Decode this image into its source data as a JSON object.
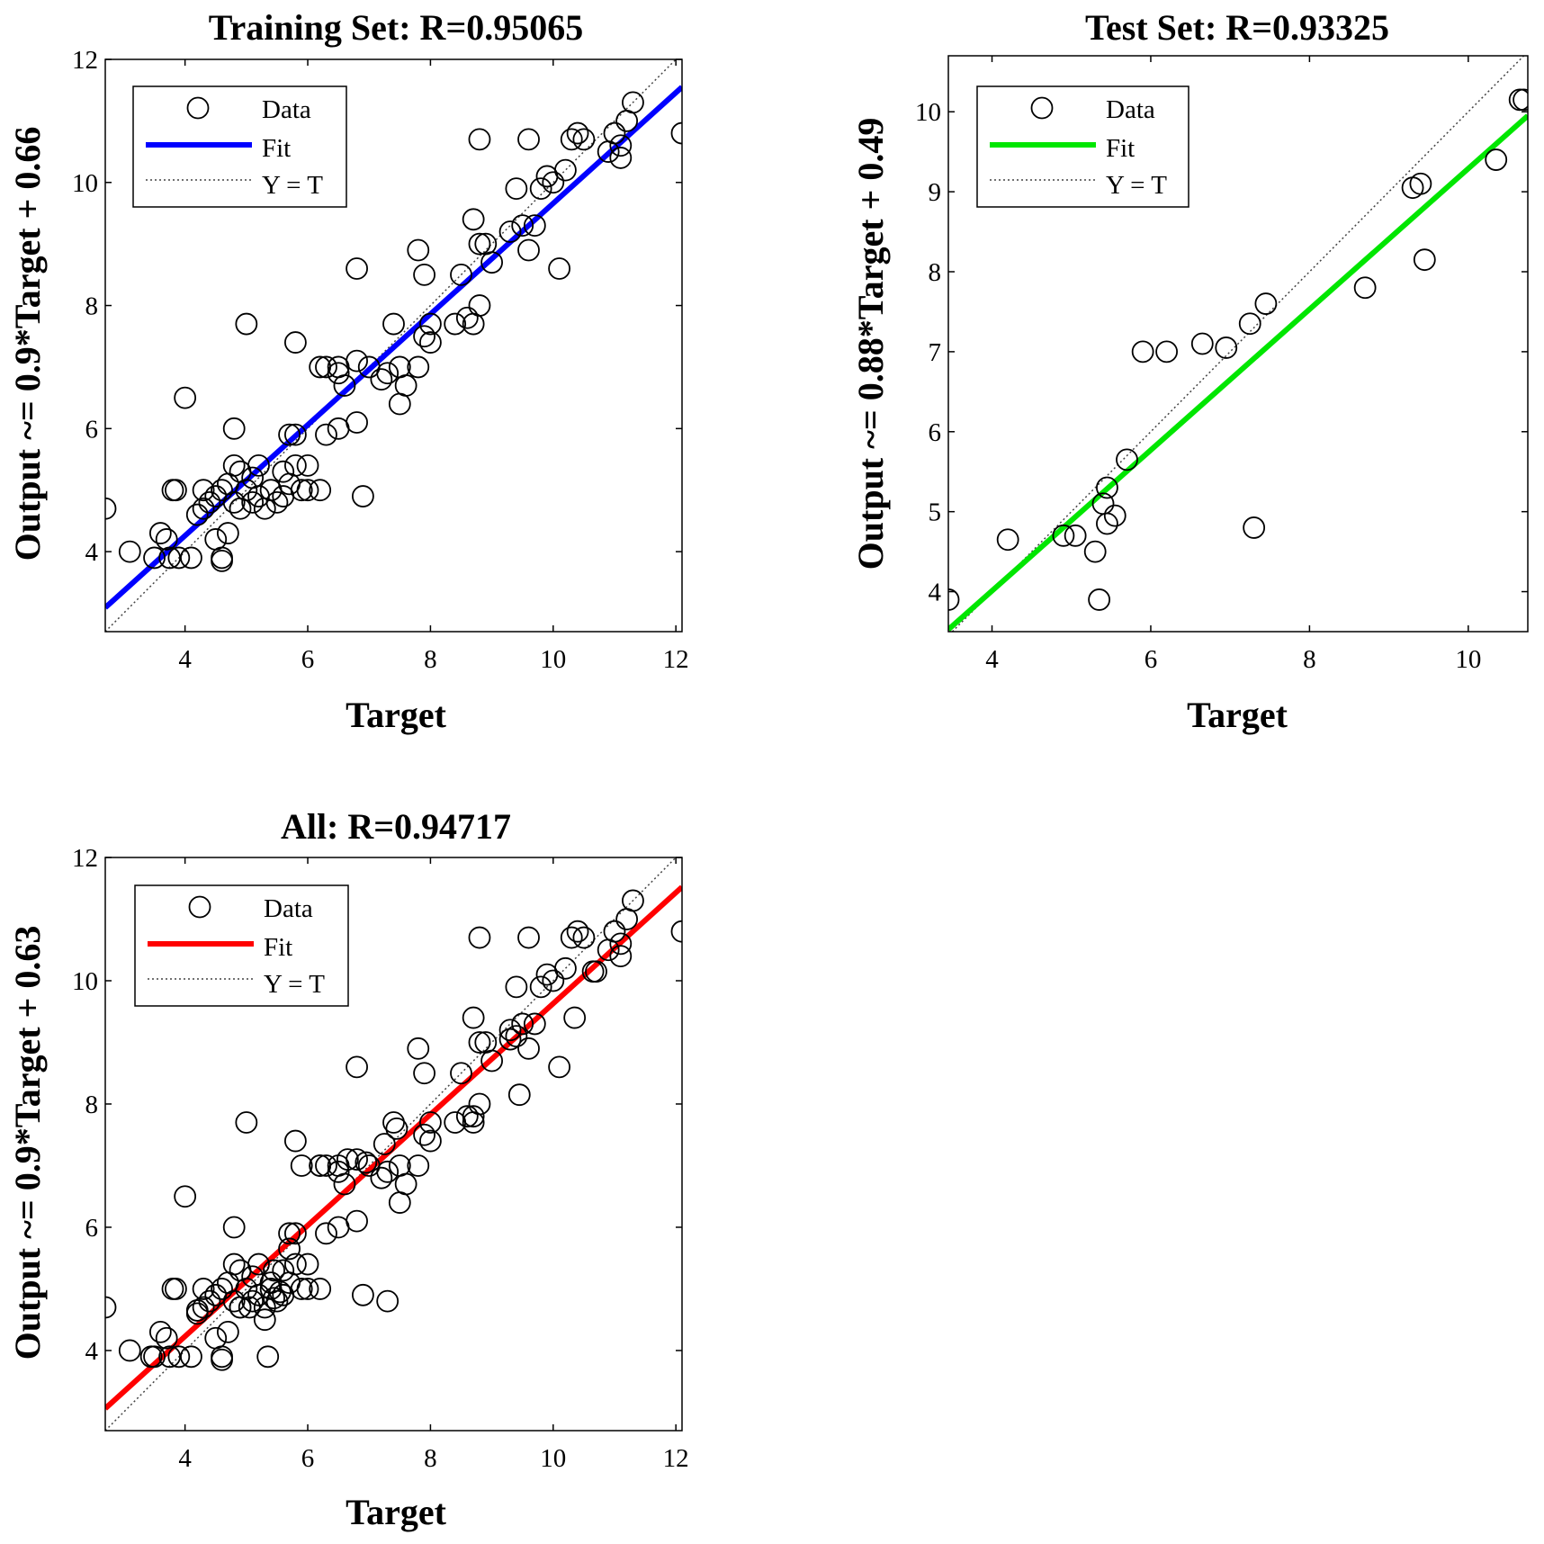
{
  "chart_data": [
    {
      "type": "scatter",
      "title": "Training Set: R=0.95065",
      "xlabel": "Target",
      "ylabel": "Output ~= 0.9*Target + 0.66",
      "xlim": [
        2.7,
        12.1
      ],
      "ylim": [
        2.7,
        12.0
      ],
      "xticks": [
        "4",
        "6",
        "8",
        "10",
        "12"
      ],
      "yticks": [
        "4",
        "6",
        "8",
        "10",
        "12"
      ],
      "grid": false,
      "legend_position": "top-left",
      "legend": [
        "Data",
        "Fit",
        "Y = T"
      ],
      "fit": {
        "slope": 0.9,
        "intercept": 0.66,
        "color": "#0000ff"
      },
      "identity_line": true,
      "points": [
        [
          2.7,
          4.7
        ],
        [
          3.1,
          4.0
        ],
        [
          3.5,
          3.9
        ],
        [
          3.6,
          4.3
        ],
        [
          3.7,
          4.2
        ],
        [
          3.8,
          5.0
        ],
        [
          3.85,
          5.0
        ],
        [
          3.9,
          3.9
        ],
        [
          3.75,
          3.9
        ],
        [
          4.0,
          6.5
        ],
        [
          4.1,
          3.9
        ],
        [
          4.2,
          4.6
        ],
        [
          4.3,
          4.7
        ],
        [
          4.3,
          5.0
        ],
        [
          4.4,
          4.8
        ],
        [
          4.5,
          4.9
        ],
        [
          4.5,
          4.2
        ],
        [
          4.6,
          3.9
        ],
        [
          4.6,
          3.85
        ],
        [
          4.6,
          5.0
        ],
        [
          4.7,
          4.3
        ],
        [
          4.7,
          5.1
        ],
        [
          4.8,
          6.0
        ],
        [
          4.8,
          5.4
        ],
        [
          4.8,
          4.8
        ],
        [
          4.9,
          4.7
        ],
        [
          4.9,
          5.3
        ],
        [
          5.0,
          7.7
        ],
        [
          5.0,
          5.0
        ],
        [
          5.1,
          5.2
        ],
        [
          5.1,
          4.8
        ],
        [
          5.2,
          5.4
        ],
        [
          5.2,
          4.9
        ],
        [
          5.3,
          4.7
        ],
        [
          5.4,
          5.0
        ],
        [
          5.5,
          4.8
        ],
        [
          5.6,
          4.9
        ],
        [
          5.6,
          5.3
        ],
        [
          5.7,
          5.9
        ],
        [
          5.7,
          5.1
        ],
        [
          5.8,
          7.4
        ],
        [
          5.8,
          5.4
        ],
        [
          5.8,
          5.9
        ],
        [
          5.9,
          5.0
        ],
        [
          6.0,
          5.4
        ],
        [
          6.0,
          5.0
        ],
        [
          6.2,
          5.0
        ],
        [
          6.2,
          7.0
        ],
        [
          6.3,
          7.0
        ],
        [
          6.3,
          5.9
        ],
        [
          6.5,
          7.0
        ],
        [
          6.5,
          6.9
        ],
        [
          6.5,
          6.0
        ],
        [
          6.6,
          6.7
        ],
        [
          6.8,
          8.6
        ],
        [
          6.8,
          7.1
        ],
        [
          6.8,
          6.1
        ],
        [
          6.9,
          4.9
        ],
        [
          7.0,
          7.0
        ],
        [
          7.2,
          6.8
        ],
        [
          7.3,
          6.9
        ],
        [
          7.4,
          7.7
        ],
        [
          7.5,
          6.4
        ],
        [
          7.5,
          7.0
        ],
        [
          7.6,
          6.7
        ],
        [
          7.8,
          8.9
        ],
        [
          7.8,
          7.0
        ],
        [
          7.9,
          8.5
        ],
        [
          7.9,
          7.5
        ],
        [
          8.0,
          7.7
        ],
        [
          8.0,
          7.4
        ],
        [
          8.4,
          7.7
        ],
        [
          8.5,
          8.5
        ],
        [
          8.6,
          7.8
        ],
        [
          8.7,
          9.4
        ],
        [
          8.7,
          7.7
        ],
        [
          8.8,
          8.0
        ],
        [
          8.8,
          10.7
        ],
        [
          8.8,
          9.0
        ],
        [
          8.9,
          9.0
        ],
        [
          9.0,
          8.7
        ],
        [
          9.3,
          9.2
        ],
        [
          9.4,
          9.9
        ],
        [
          9.5,
          9.3
        ],
        [
          9.6,
          10.7
        ],
        [
          9.6,
          8.9
        ],
        [
          9.7,
          9.3
        ],
        [
          9.8,
          9.9
        ],
        [
          9.9,
          10.1
        ],
        [
          10.0,
          10.0
        ],
        [
          10.1,
          8.6
        ],
        [
          10.2,
          10.2
        ],
        [
          10.3,
          10.7
        ],
        [
          10.4,
          10.8
        ],
        [
          10.5,
          10.7
        ],
        [
          10.9,
          10.5
        ],
        [
          11.0,
          10.8
        ],
        [
          11.1,
          10.4
        ],
        [
          11.1,
          10.6
        ],
        [
          11.2,
          11.0
        ],
        [
          11.3,
          11.3
        ],
        [
          12.1,
          10.8
        ]
      ]
    },
    {
      "type": "scatter",
      "title": "Test Set: R=0.93325",
      "xlabel": "Target",
      "ylabel": "Output ~= 0.88*Target + 0.49",
      "xlim": [
        3.45,
        10.75
      ],
      "ylim": [
        3.5,
        10.7
      ],
      "xticks": [
        "4",
        "6",
        "8",
        "10"
      ],
      "yticks": [
        "4",
        "5",
        "6",
        "7",
        "8",
        "9",
        "10"
      ],
      "grid": false,
      "legend_position": "top-left",
      "legend": [
        "Data",
        "Fit",
        "Y = T"
      ],
      "fit": {
        "slope": 0.88,
        "intercept": 0.49,
        "color": "#00e600"
      },
      "identity_line": true,
      "points": [
        [
          3.45,
          3.9
        ],
        [
          4.2,
          4.65
        ],
        [
          4.9,
          4.7
        ],
        [
          5.05,
          4.7
        ],
        [
          5.3,
          4.5
        ],
        [
          5.35,
          3.9
        ],
        [
          5.4,
          5.1
        ],
        [
          5.45,
          5.3
        ],
        [
          5.45,
          4.85
        ],
        [
          5.55,
          4.95
        ],
        [
          5.7,
          5.65
        ],
        [
          5.9,
          7.0
        ],
        [
          6.2,
          7.0
        ],
        [
          6.65,
          7.1
        ],
        [
          6.95,
          7.05
        ],
        [
          7.25,
          7.35
        ],
        [
          7.3,
          4.8
        ],
        [
          7.45,
          7.6
        ],
        [
          8.7,
          7.8
        ],
        [
          9.3,
          9.05
        ],
        [
          9.4,
          9.1
        ],
        [
          9.45,
          8.15
        ],
        [
          10.35,
          9.4
        ],
        [
          10.65,
          10.15
        ],
        [
          10.7,
          10.15
        ]
      ]
    },
    {
      "type": "scatter",
      "title": "All: R=0.94717",
      "xlabel": "Target",
      "ylabel": "Output ~= 0.9*Target + 0.63",
      "xlim": [
        2.7,
        12.1
      ],
      "ylim": [
        2.7,
        12.0
      ],
      "xticks": [
        "4",
        "6",
        "8",
        "10",
        "12"
      ],
      "yticks": [
        "4",
        "6",
        "8",
        "10",
        "12"
      ],
      "grid": false,
      "legend_position": "top-left",
      "legend": [
        "Data",
        "Fit",
        "Y = T"
      ],
      "fit": {
        "slope": 0.9,
        "intercept": 0.63,
        "color": "#ff0000"
      },
      "identity_line": true,
      "points": [
        [
          2.7,
          4.7
        ],
        [
          3.1,
          4.0
        ],
        [
          3.5,
          3.9
        ],
        [
          3.6,
          4.3
        ],
        [
          3.7,
          4.2
        ],
        [
          3.8,
          5.0
        ],
        [
          3.85,
          5.0
        ],
        [
          3.9,
          3.9
        ],
        [
          3.75,
          3.9
        ],
        [
          4.0,
          6.5
        ],
        [
          4.1,
          3.9
        ],
        [
          4.2,
          4.6
        ],
        [
          4.3,
          4.7
        ],
        [
          4.3,
          5.0
        ],
        [
          4.4,
          4.8
        ],
        [
          4.5,
          4.9
        ],
        [
          4.5,
          4.2
        ],
        [
          4.6,
          3.9
        ],
        [
          4.6,
          3.85
        ],
        [
          4.6,
          5.0
        ],
        [
          4.7,
          4.3
        ],
        [
          4.7,
          5.1
        ],
        [
          4.8,
          6.0
        ],
        [
          4.8,
          5.4
        ],
        [
          4.8,
          4.8
        ],
        [
          4.9,
          4.7
        ],
        [
          4.9,
          5.3
        ],
        [
          5.0,
          7.7
        ],
        [
          5.0,
          5.0
        ],
        [
          5.1,
          5.2
        ],
        [
          5.1,
          4.8
        ],
        [
          5.2,
          5.4
        ],
        [
          5.2,
          4.9
        ],
        [
          5.3,
          4.7
        ],
        [
          5.4,
          5.0
        ],
        [
          5.5,
          4.8
        ],
        [
          5.6,
          4.9
        ],
        [
          5.6,
          5.3
        ],
        [
          5.7,
          5.9
        ],
        [
          5.7,
          5.1
        ],
        [
          5.8,
          7.4
        ],
        [
          5.8,
          5.4
        ],
        [
          5.8,
          5.9
        ],
        [
          5.9,
          5.0
        ],
        [
          6.0,
          5.4
        ],
        [
          6.0,
          5.0
        ],
        [
          6.2,
          5.0
        ],
        [
          6.2,
          7.0
        ],
        [
          6.3,
          7.0
        ],
        [
          6.3,
          5.9
        ],
        [
          6.5,
          7.0
        ],
        [
          6.5,
          6.9
        ],
        [
          6.5,
          6.0
        ],
        [
          6.6,
          6.7
        ],
        [
          6.8,
          8.6
        ],
        [
          6.8,
          7.1
        ],
        [
          6.8,
          6.1
        ],
        [
          6.9,
          4.9
        ],
        [
          7.0,
          7.0
        ],
        [
          7.2,
          6.8
        ],
        [
          7.3,
          6.9
        ],
        [
          7.4,
          7.7
        ],
        [
          7.5,
          6.4
        ],
        [
          7.5,
          7.0
        ],
        [
          7.6,
          6.7
        ],
        [
          7.8,
          8.9
        ],
        [
          7.8,
          7.0
        ],
        [
          7.9,
          8.5
        ],
        [
          7.9,
          7.5
        ],
        [
          8.0,
          7.7
        ],
        [
          8.0,
          7.4
        ],
        [
          8.4,
          7.7
        ],
        [
          8.5,
          8.5
        ],
        [
          8.6,
          7.8
        ],
        [
          8.7,
          9.4
        ],
        [
          8.7,
          7.7
        ],
        [
          8.8,
          8.0
        ],
        [
          8.8,
          10.7
        ],
        [
          8.8,
          9.0
        ],
        [
          8.9,
          9.0
        ],
        [
          9.0,
          8.7
        ],
        [
          9.3,
          9.2
        ],
        [
          9.4,
          9.9
        ],
        [
          9.5,
          9.3
        ],
        [
          9.6,
          10.7
        ],
        [
          9.6,
          8.9
        ],
        [
          9.7,
          9.3
        ],
        [
          9.8,
          9.9
        ],
        [
          9.9,
          10.1
        ],
        [
          10.0,
          10.0
        ],
        [
          10.1,
          8.6
        ],
        [
          10.2,
          10.2
        ],
        [
          10.3,
          10.7
        ],
        [
          10.4,
          10.8
        ],
        [
          10.5,
          10.7
        ],
        [
          10.9,
          10.5
        ],
        [
          11.0,
          10.8
        ],
        [
          11.1,
          10.4
        ],
        [
          11.1,
          10.6
        ],
        [
          11.2,
          11.0
        ],
        [
          11.3,
          11.3
        ],
        [
          12.1,
          10.8
        ],
        [
          3.45,
          3.9
        ],
        [
          4.2,
          4.65
        ],
        [
          4.9,
          4.7
        ],
        [
          5.05,
          4.7
        ],
        [
          5.3,
          4.5
        ],
        [
          5.35,
          3.9
        ],
        [
          5.4,
          5.1
        ],
        [
          5.45,
          5.3
        ],
        [
          5.45,
          4.85
        ],
        [
          5.55,
          4.95
        ],
        [
          5.7,
          5.65
        ],
        [
          5.9,
          7.0
        ],
        [
          6.2,
          7.0
        ],
        [
          6.65,
          7.1
        ],
        [
          6.95,
          7.05
        ],
        [
          7.25,
          7.35
        ],
        [
          7.3,
          4.8
        ],
        [
          7.45,
          7.6
        ],
        [
          8.7,
          7.8
        ],
        [
          9.3,
          9.05
        ],
        [
          9.4,
          9.1
        ],
        [
          9.45,
          8.15
        ],
        [
          10.35,
          9.4
        ],
        [
          10.65,
          10.15
        ],
        [
          10.7,
          10.15
        ]
      ]
    }
  ]
}
